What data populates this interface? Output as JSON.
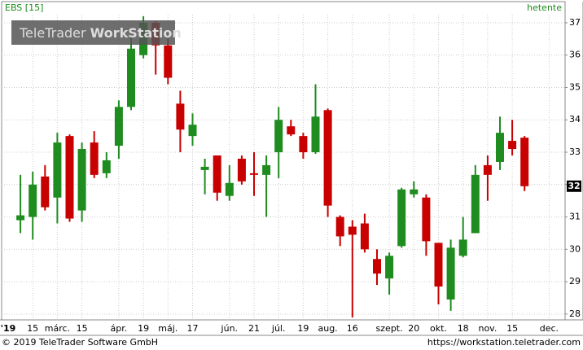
{
  "chart_data": {
    "type": "candlestick",
    "title": "EBS [15]",
    "period": "hetente",
    "watermark": {
      "brand": "TeleTrader",
      "product": "WorkStation"
    },
    "footer_left": "© 2019 TeleTrader Software GmbH",
    "footer_right": "https://workstation.teletrader.com",
    "up_color": "#1e8c1e",
    "down_color": "#c80000",
    "grid": true,
    "ylim": [
      27.82,
      37.25
    ],
    "yticks": [
      28,
      29,
      30,
      31,
      32,
      33,
      34,
      35,
      36,
      37
    ],
    "last": {
      "value": 31.95,
      "label": "32"
    },
    "categories": [
      "'19",
      null,
      "15",
      null,
      "márc.",
      null,
      "15",
      null,
      null,
      "ápr.",
      null,
      "19",
      null,
      "máj.",
      null,
      "17",
      null,
      null,
      "jún.",
      null,
      "21",
      null,
      "júl.",
      null,
      "19",
      null,
      "aug.",
      null,
      "16",
      null,
      null,
      "szept.",
      null,
      "20",
      null,
      "okt.",
      null,
      "18",
      null,
      "nov.",
      null,
      "15",
      null,
      null,
      "dec.",
      null
    ],
    "open": [
      null,
      30.9,
      31.0,
      32.25,
      31.6,
      33.5,
      31.2,
      33.3,
      32.35,
      33.2,
      34.4,
      36.0,
      37.0,
      36.3,
      34.5,
      33.5,
      32.45,
      32.9,
      31.65,
      32.8,
      32.35,
      32.3,
      33.0,
      33.8,
      33.5,
      33.0,
      34.3,
      31.0,
      30.7,
      30.8,
      29.7,
      29.1,
      30.1,
      31.7,
      31.6,
      30.2,
      28.45,
      29.8,
      30.5,
      32.6,
      32.7,
      33.35,
      33.45,
      null,
      null,
      null
    ],
    "high": [
      null,
      32.3,
      32.4,
      32.6,
      33.6,
      33.55,
      33.3,
      33.65,
      33.0,
      34.6,
      36.6,
      37.2,
      37.05,
      36.5,
      34.9,
      34.2,
      32.8,
      32.9,
      32.6,
      32.9,
      33.0,
      32.9,
      34.4,
      34.0,
      33.6,
      35.1,
      34.35,
      31.05,
      30.9,
      31.1,
      30.0,
      29.9,
      31.9,
      32.1,
      31.7,
      30.2,
      30.3,
      31.0,
      32.6,
      32.9,
      34.1,
      34.0,
      33.5,
      null,
      null,
      null
    ],
    "low": [
      null,
      30.5,
      30.3,
      31.2,
      30.8,
      30.85,
      30.85,
      32.2,
      32.2,
      32.8,
      34.3,
      35.9,
      35.4,
      35.1,
      33.0,
      33.2,
      31.7,
      31.5,
      31.5,
      32.0,
      31.65,
      31.0,
      32.2,
      33.5,
      32.8,
      32.95,
      31.0,
      30.1,
      27.9,
      29.9,
      28.9,
      28.6,
      30.05,
      31.6,
      29.8,
      28.3,
      28.1,
      29.75,
      30.5,
      31.5,
      32.45,
      32.9,
      31.8,
      null,
      null,
      null
    ],
    "close": [
      null,
      31.05,
      32.0,
      31.3,
      33.3,
      30.95,
      33.1,
      32.3,
      32.75,
      34.4,
      36.2,
      37.0,
      36.3,
      35.3,
      33.7,
      33.85,
      32.55,
      31.75,
      32.05,
      32.1,
      32.3,
      32.6,
      34.0,
      33.55,
      33.0,
      34.1,
      31.35,
      30.4,
      30.45,
      30.0,
      29.25,
      29.8,
      31.85,
      31.85,
      30.25,
      28.85,
      30.05,
      30.3,
      32.3,
      32.3,
      33.6,
      33.1,
      31.95,
      null,
      null,
      null
    ]
  }
}
